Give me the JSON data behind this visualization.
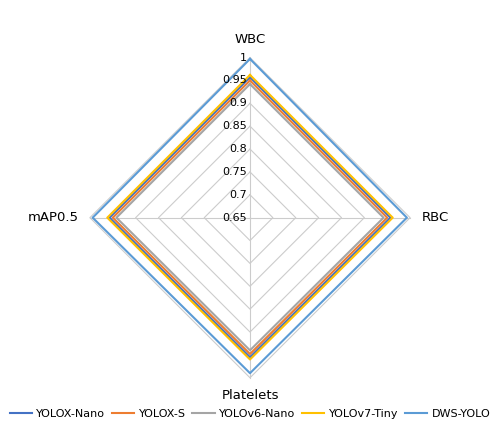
{
  "categories": [
    "WBC",
    "RBC",
    "Platelets",
    "mAP0.5"
  ],
  "model_names": [
    "YOLOX-Nano",
    "YOLOX-S",
    "YOLOv6-Nano",
    "YOLOv7-Tiny",
    "DWS-YOLO"
  ],
  "model_data": {
    "YOLOX-Nano": [
      0.957,
      0.957,
      0.955,
      0.957
    ],
    "YOLOX-S": [
      0.95,
      0.95,
      0.948,
      0.95
    ],
    "YOLOv6-Nano": [
      0.942,
      0.942,
      0.94,
      0.942
    ],
    "YOLOv7-Tiny": [
      0.962,
      0.962,
      0.96,
      0.962
    ],
    "DWS-YOLO": [
      0.997,
      0.993,
      0.99,
      0.994
    ]
  },
  "colors": {
    "YOLOX-Nano": "#4472C4",
    "YOLOX-S": "#ED7D31",
    "YOLOv6-Nano": "#A5A5A5",
    "YOLOv7-Tiny": "#FFC000",
    "DWS-YOLO": "#5B9BD5"
  },
  "r_min": 0.65,
  "r_max": 1.0,
  "r_ticks": [
    0.65,
    0.7,
    0.75,
    0.8,
    0.85,
    0.9,
    0.95,
    1.0
  ],
  "grid_color": "#CCCCCC",
  "background": "#FFFFFF",
  "label_fontsize": 9.5,
  "tick_fontsize": 8,
  "legend_fontsize": 8,
  "line_width": 1.5
}
